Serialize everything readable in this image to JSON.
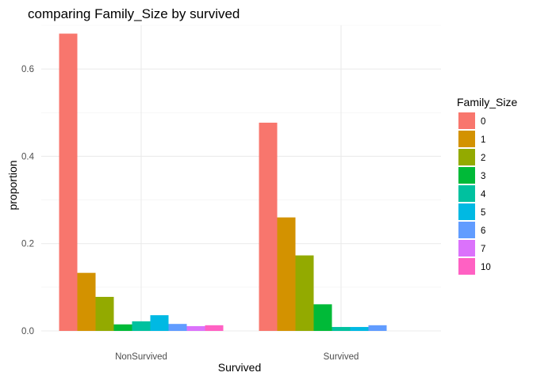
{
  "chart_data": {
    "type": "bar",
    "title": "comparing Family_Size by survived",
    "xlabel": "Survived",
    "ylabel": "proportion",
    "categories": [
      "NonSurvived",
      "Survived"
    ],
    "ylim": [
      0,
      0.7
    ],
    "yticks": [
      0.0,
      0.2,
      0.4,
      0.6
    ],
    "ytick_labels": [
      "0.0",
      "0.2",
      "0.4",
      "0.6"
    ],
    "grid": true,
    "legend": {
      "title": "Family_Size",
      "position": "right"
    },
    "series": [
      {
        "name": "0",
        "color": "#F8766D",
        "values": [
          0.681,
          0.477
        ]
      },
      {
        "name": "1",
        "color": "#D39200",
        "values": [
          0.133,
          0.26
        ]
      },
      {
        "name": "2",
        "color": "#93AA00",
        "values": [
          0.078,
          0.173
        ]
      },
      {
        "name": "3",
        "color": "#00BA38",
        "values": [
          0.015,
          0.061
        ]
      },
      {
        "name": "4",
        "color": "#00C19F",
        "values": [
          0.022,
          0.009
        ]
      },
      {
        "name": "5",
        "color": "#00B9E3",
        "values": [
          0.036,
          0.009
        ]
      },
      {
        "name": "6",
        "color": "#619CFF",
        "values": [
          0.016,
          0.013
        ]
      },
      {
        "name": "7",
        "color": "#DB72FB",
        "values": [
          0.011,
          0.0
        ]
      },
      {
        "name": "10",
        "color": "#FF61C3",
        "values": [
          0.013,
          0.0
        ]
      }
    ]
  }
}
